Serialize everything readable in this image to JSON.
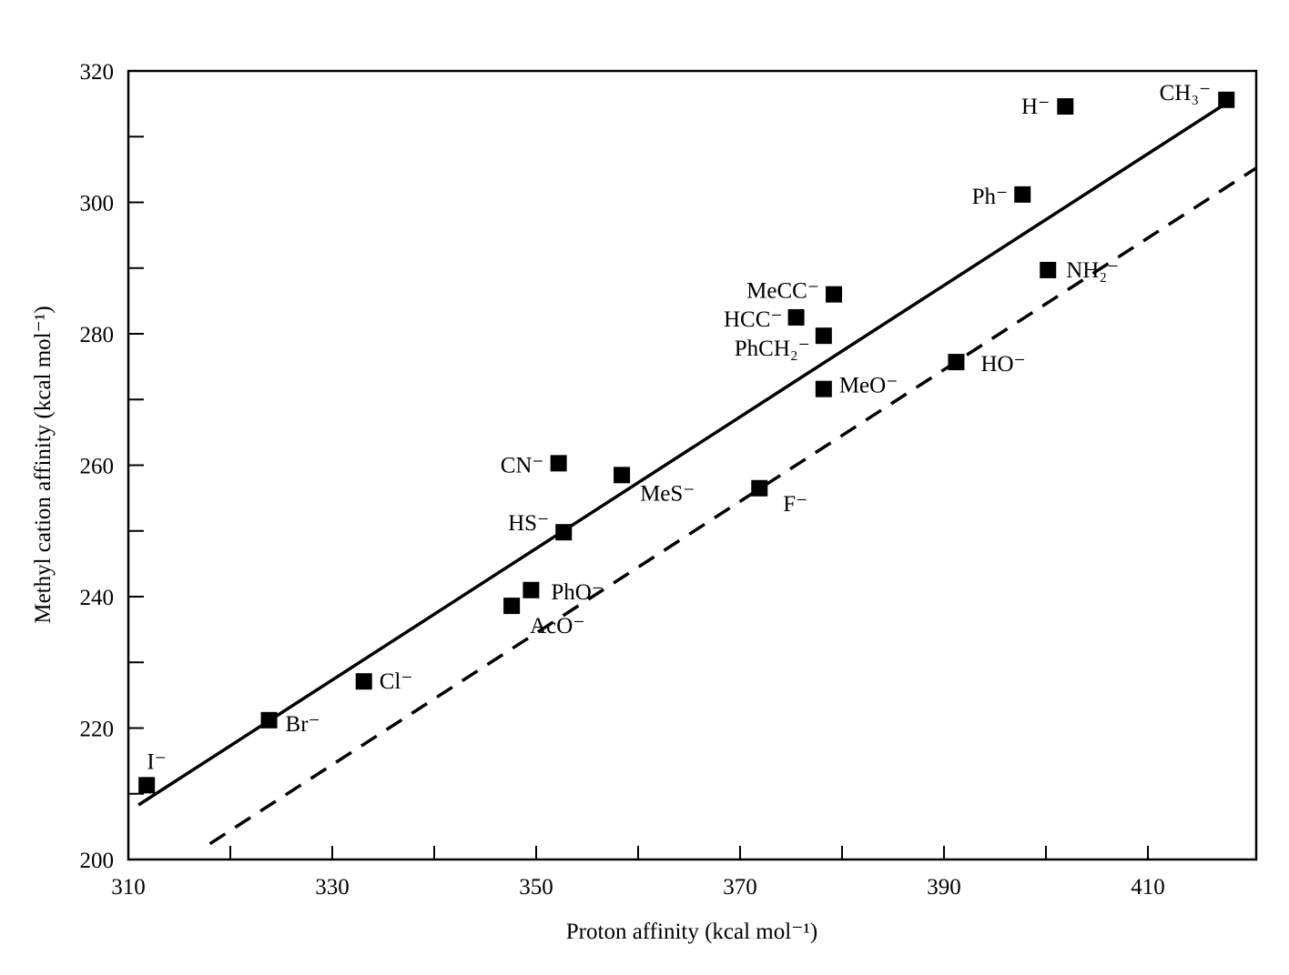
{
  "chart_data": {
    "type": "scatter",
    "title": "",
    "xlabel": "Proton affinity (kcal mol⁻¹)",
    "ylabel": "Methyl cation affinity (kcal mol⁻¹)",
    "xlim": [
      310,
      420
    ],
    "ylim": [
      200,
      320
    ],
    "xticks": [
      310,
      330,
      350,
      370,
      390,
      410
    ],
    "yticks": [
      200,
      220,
      240,
      260,
      280,
      300,
      320
    ],
    "minor_tick_step": 10,
    "grid": false,
    "points": [
      {
        "label": "I⁻",
        "x": 311.8,
        "y": 211.3
      },
      {
        "label": "Br⁻",
        "x": 323.8,
        "y": 221.2
      },
      {
        "label": "Cl⁻",
        "x": 333.1,
        "y": 227.1
      },
      {
        "label": "AcO⁻",
        "x": 347.6,
        "y": 238.6
      },
      {
        "label": "PhO⁻",
        "x": 349.5,
        "y": 241.0
      },
      {
        "label": "HS⁻",
        "x": 352.7,
        "y": 249.8
      },
      {
        "label": "CN⁻",
        "x": 352.2,
        "y": 260.3
      },
      {
        "label": "MeS⁻",
        "x": 358.4,
        "y": 258.5
      },
      {
        "label": "F⁻",
        "x": 371.9,
        "y": 256.5
      },
      {
        "label": "MeO⁻",
        "x": 378.2,
        "y": 271.6
      },
      {
        "label": "PhCH₂⁻",
        "x": 378.2,
        "y": 279.7
      },
      {
        "label": "HCC⁻",
        "x": 375.5,
        "y": 282.5
      },
      {
        "label": "MeCC⁻",
        "x": 379.2,
        "y": 286.0
      },
      {
        "label": "HO⁻",
        "x": 391.2,
        "y": 275.7
      },
      {
        "label": "NH₂⁻",
        "x": 400.2,
        "y": 289.7
      },
      {
        "label": "Ph⁻",
        "x": 397.7,
        "y": 301.2
      },
      {
        "label": "H⁻",
        "x": 401.9,
        "y": 314.6
      },
      {
        "label": "CH₃⁻",
        "x": 417.7,
        "y": 315.6
      }
    ],
    "lines": [
      {
        "name": "solid-fit",
        "style": "solid",
        "x": [
          311.0,
          417.9
        ],
        "y": [
          208.3,
          315.3
        ]
      },
      {
        "name": "dashed-fit",
        "style": "dashed",
        "x": [
          318.0,
          420.6
        ],
        "y": [
          202.4,
          305.2
        ]
      }
    ]
  }
}
